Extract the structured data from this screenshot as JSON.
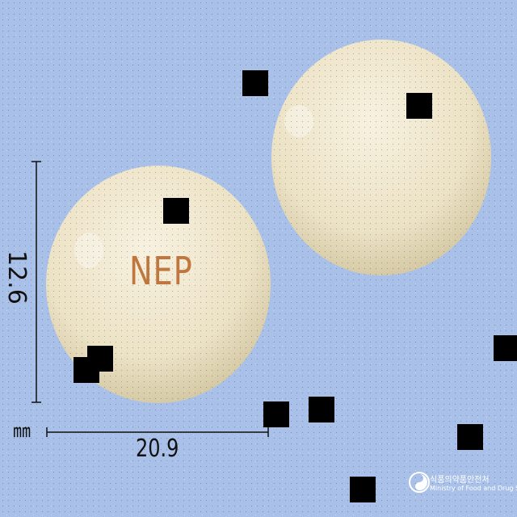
{
  "image": {
    "subject": "pill-photo",
    "background_color": "#a9c1e9",
    "pill_color": "#efe6cc",
    "imprint_color": "#c0773f"
  },
  "imprint": {
    "text": "NEP"
  },
  "dimensions": {
    "unit": "㎜",
    "width_label": "20.9",
    "height_label": "12.6"
  },
  "watermark": {
    "korean": "식품의약품안전처",
    "english": "Ministry of Food and Drug Safety"
  }
}
